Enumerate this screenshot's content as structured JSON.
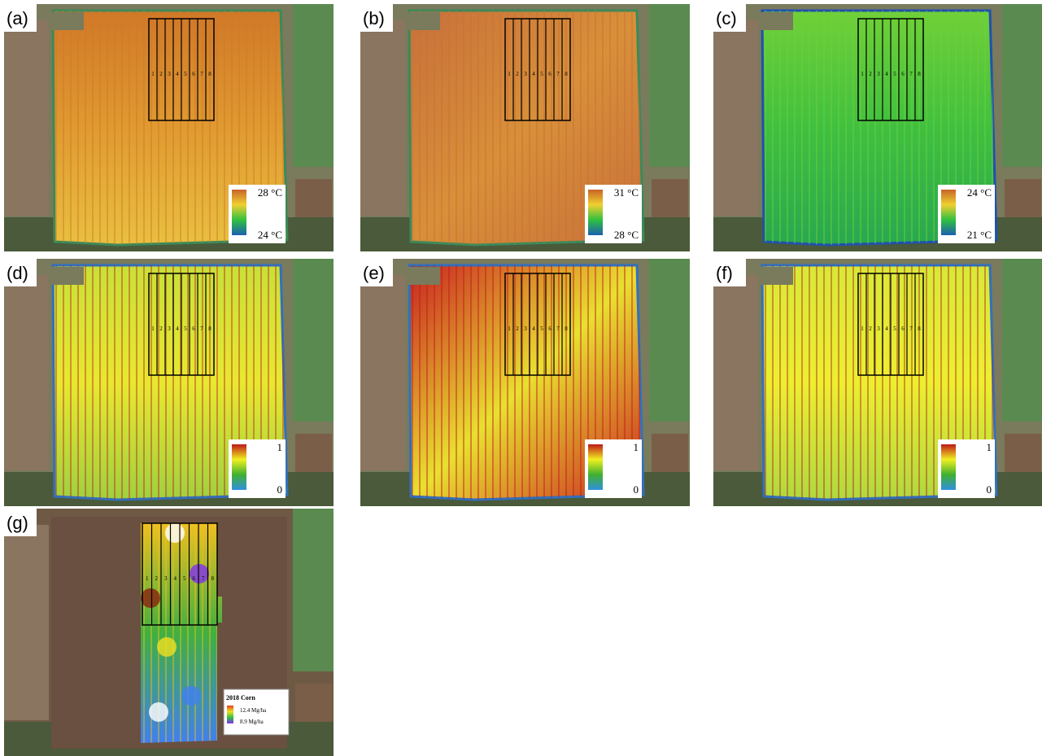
{
  "panels": [
    {
      "label": "(a)",
      "legend": {
        "max": "28 °C",
        "min": "24 °C"
      }
    },
    {
      "label": "(b)",
      "legend": {
        "max": "31 °C",
        "min": "28 °C"
      }
    },
    {
      "label": "(c)",
      "legend": {
        "max": "24 °C",
        "min": "21 °C"
      }
    },
    {
      "label": "(d)",
      "legend": {
        "max": "1",
        "min": "0"
      }
    },
    {
      "label": "(e)",
      "legend": {
        "max": "1",
        "min": "0"
      }
    },
    {
      "label": "(f)",
      "legend": {
        "max": "1",
        "min": "0"
      }
    },
    {
      "label": "(g)",
      "legend": {
        "title": "2018 Corn",
        "max": "12.4 Mg/ha",
        "min": "8.9 Mg/ha"
      }
    }
  ],
  "plot_labels": [
    "1",
    "2",
    "3",
    "4",
    "5",
    "6",
    "7",
    "8"
  ]
}
